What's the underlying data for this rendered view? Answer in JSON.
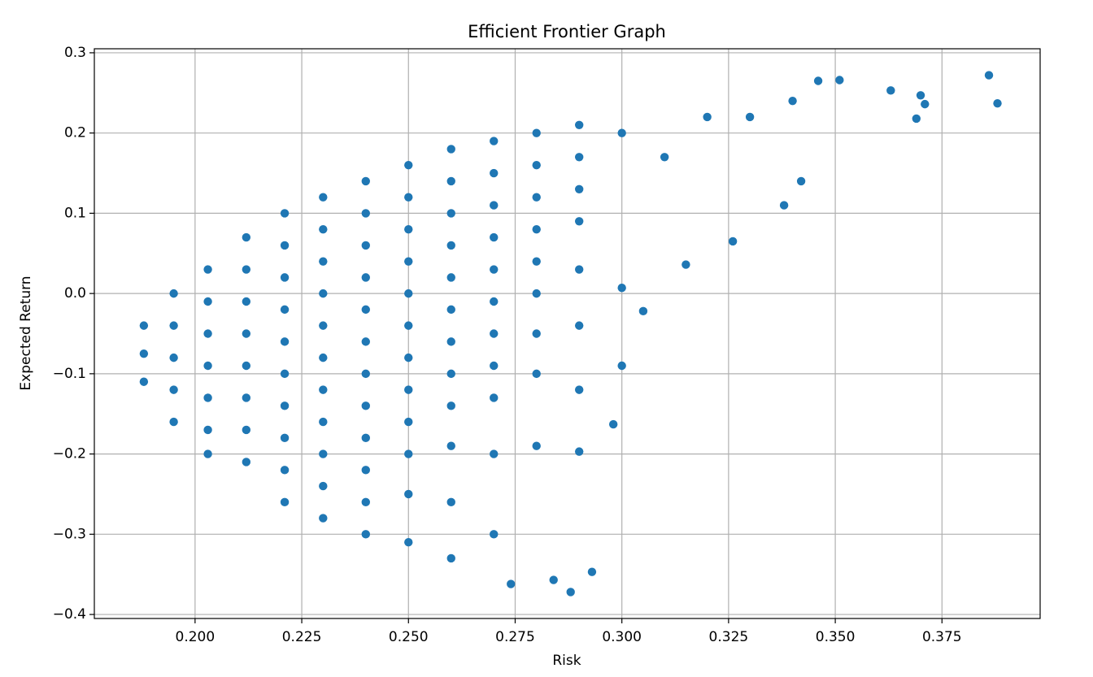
{
  "chart_data": {
    "type": "scatter",
    "title": "Efficient Frontier Graph",
    "x_label": "Risk",
    "y_label": "Expected Return",
    "color": "#1f77b4",
    "grid": true,
    "xlim": [
      0.1764,
      0.398
    ],
    "ylim": [
      -0.405,
      0.305
    ],
    "xticks": [
      {
        "value": 0.2,
        "label": "0.200"
      },
      {
        "value": 0.225,
        "label": "0.225"
      },
      {
        "value": 0.25,
        "label": "0.250"
      },
      {
        "value": 0.275,
        "label": "0.275"
      },
      {
        "value": 0.3,
        "label": "0.300"
      },
      {
        "value": 0.325,
        "label": "0.325"
      },
      {
        "value": 0.35,
        "label": "0.350"
      },
      {
        "value": 0.375,
        "label": "0.375"
      }
    ],
    "yticks": [
      {
        "value": -0.4,
        "label": "−0.4"
      },
      {
        "value": -0.3,
        "label": "−0.3"
      },
      {
        "value": -0.2,
        "label": "−0.2"
      },
      {
        "value": -0.1,
        "label": "−0.1"
      },
      {
        "value": 0,
        "label": "0.0"
      },
      0.1,
      0.2,
      0.3
    ],
    "x": [
      0.188,
      0.188,
      0.188,
      0.195,
      0.195,
      0.195,
      0.195,
      0.195,
      0.203,
      0.203,
      0.203,
      0.203,
      0.203,
      0.203,
      0.203,
      0.212,
      0.212,
      0.212,
      0.212,
      0.212,
      0.212,
      0.212,
      0.212,
      0.221,
      0.221,
      0.221,
      0.221,
      0.221,
      0.221,
      0.221,
      0.221,
      0.221,
      0.221,
      0.23,
      0.23,
      0.23,
      0.23,
      0.23,
      0.23,
      0.23,
      0.23,
      0.23,
      0.23,
      0.23,
      0.24,
      0.24,
      0.24,
      0.24,
      0.24,
      0.24,
      0.24,
      0.24,
      0.24,
      0.24,
      0.24,
      0.24,
      0.25,
      0.25,
      0.25,
      0.25,
      0.25,
      0.25,
      0.25,
      0.25,
      0.25,
      0.25,
      0.25,
      0.25,
      0.26,
      0.26,
      0.26,
      0.26,
      0.26,
      0.26,
      0.26,
      0.26,
      0.26,
      0.26,
      0.26,
      0.26,
      0.27,
      0.27,
      0.27,
      0.27,
      0.27,
      0.27,
      0.27,
      0.27,
      0.27,
      0.27,
      0.27,
      0.28,
      0.28,
      0.28,
      0.28,
      0.28,
      0.28,
      0.28,
      0.28,
      0.28,
      0.29,
      0.29,
      0.29,
      0.29,
      0.29,
      0.29,
      0.29,
      0.3,
      0.31,
      0.32,
      0.33,
      0.34,
      0.346,
      0.351,
      0.363,
      0.37,
      0.371,
      0.369,
      0.386,
      0.388,
      0.342,
      0.338,
      0.326,
      0.315,
      0.3,
      0.298,
      0.29,
      0.288,
      0.293,
      0.274,
      0.284,
      0.305,
      0.3
    ],
    "values": [
      -0.075,
      -0.04,
      -0.11,
      0.0,
      -0.04,
      -0.08,
      -0.12,
      -0.16,
      0.03,
      -0.01,
      -0.05,
      -0.09,
      -0.13,
      -0.17,
      -0.2,
      0.07,
      0.03,
      -0.01,
      -0.05,
      -0.09,
      -0.13,
      -0.17,
      -0.21,
      0.1,
      0.06,
      0.02,
      -0.02,
      -0.06,
      -0.1,
      -0.14,
      -0.18,
      -0.22,
      -0.26,
      0.12,
      0.08,
      0.04,
      0.0,
      -0.04,
      -0.08,
      -0.12,
      -0.16,
      -0.2,
      -0.24,
      -0.28,
      0.14,
      0.1,
      0.06,
      0.02,
      -0.02,
      -0.06,
      -0.1,
      -0.14,
      -0.18,
      -0.22,
      -0.26,
      -0.3,
      0.16,
      0.12,
      0.08,
      0.04,
      0.0,
      -0.04,
      -0.08,
      -0.12,
      -0.16,
      -0.2,
      -0.25,
      -0.31,
      0.18,
      0.14,
      0.1,
      0.06,
      0.02,
      -0.02,
      -0.06,
      -0.1,
      -0.14,
      -0.19,
      -0.26,
      -0.33,
      0.19,
      0.15,
      0.11,
      0.07,
      0.03,
      -0.01,
      -0.05,
      -0.09,
      -0.13,
      -0.2,
      -0.3,
      0.2,
      0.16,
      0.12,
      0.08,
      0.04,
      0.0,
      -0.05,
      -0.1,
      -0.19,
      0.21,
      0.17,
      0.13,
      0.09,
      0.03,
      -0.04,
      -0.12,
      0.2,
      0.17,
      0.22,
      0.22,
      0.24,
      0.265,
      0.266,
      0.253,
      0.247,
      0.236,
      0.218,
      0.272,
      0.237,
      0.14,
      0.11,
      0.065,
      0.036,
      -0.09,
      -0.163,
      -0.197,
      -0.372,
      -0.347,
      -0.362,
      -0.357,
      -0.022,
      0.007
    ]
  }
}
